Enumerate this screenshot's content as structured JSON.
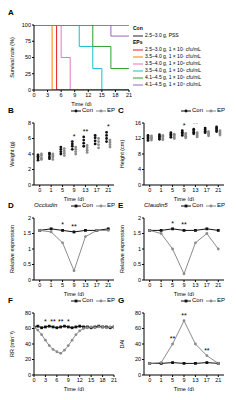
{
  "chart_data": [
    {
      "type": "line",
      "title": "A",
      "x_label": "Time (d)",
      "y_label": "Survival rate (%)",
      "line_style": "step",
      "x": [
        0,
        3,
        4,
        5,
        6,
        8,
        10,
        13,
        15,
        17,
        21
      ],
      "xlim": [
        0,
        21
      ],
      "xticks": [
        0,
        3,
        6,
        9,
        12,
        15,
        18,
        21
      ],
      "ylim": [
        0,
        100
      ],
      "yticks": [
        0,
        25,
        50,
        75,
        100
      ],
      "annotations": [
        {
          "text": "Con"
        },
        {
          "text": "EPs"
        }
      ],
      "series": [
        {
          "name": "2.5–3.0 g, PSS",
          "color": "#222222",
          "values": [
            100,
            100,
            100,
            100,
            100,
            100,
            100,
            100,
            100,
            100,
            100
          ]
        },
        {
          "name": "2.5–3.0 g, 1 × 10⁷ cfu/mL",
          "color": "#e41a1c",
          "values": [
            100,
            100,
            100,
            0,
            0,
            0,
            0,
            0,
            0,
            0,
            0
          ]
        },
        {
          "name": "3.5–4.0 g, 1 × 10⁷ cfu/mL",
          "color": "#ff7f00",
          "values": [
            100,
            100,
            0,
            0,
            0,
            0,
            0,
            0,
            0,
            0,
            0
          ]
        },
        {
          "name": "3.5–4.0 g, 1 × 10⁶ cfu/mL",
          "color": "#e377c2",
          "values": [
            100,
            100,
            100,
            100,
            50,
            0,
            0,
            0,
            0,
            0,
            0
          ]
        },
        {
          "name": "3.5–4.0 g, 1 × 10⁵ cfu/mL",
          "color": "#17becf",
          "values": [
            100,
            100,
            100,
            100,
            100,
            100,
            67,
            33,
            0,
            0,
            0
          ]
        },
        {
          "name": "4.1–4.5 g, 1 × 10⁵ cfu/mL",
          "color": "#2ca02c",
          "values": [
            100,
            100,
            100,
            100,
            100,
            100,
            100,
            67,
            67,
            33,
            33
          ]
        },
        {
          "name": "4.1–4.5 g, 1 × 10⁴ cfu/mL",
          "color": "#9467bd",
          "values": [
            100,
            100,
            100,
            100,
            100,
            100,
            100,
            100,
            100,
            83,
            83
          ]
        }
      ]
    },
    {
      "type": "scatter",
      "title": "B",
      "x_label": "Time (d)",
      "y_label": "Weight (g)",
      "categories": [
        "0",
        "1",
        "5",
        "9",
        "13",
        "17",
        "21"
      ],
      "ylim": [
        0,
        8
      ],
      "yticks": [
        0,
        2,
        4,
        6,
        8
      ],
      "annotations": [
        {
          "category": "9",
          "text": "*"
        },
        {
          "category": "13",
          "text": "**"
        },
        {
          "category": "21",
          "text": "*"
        }
      ],
      "series": [
        {
          "name": "Con",
          "color": "#111111",
          "marker": "circle",
          "values": [
            [
              3.2,
              3.5,
              3.7,
              3.9
            ],
            [
              3.4,
              3.6,
              3.9,
              4.1
            ],
            [
              4.0,
              4.3,
              4.6,
              4.9
            ],
            [
              4.6,
              5.0,
              5.3,
              5.6
            ],
            [
              5.0,
              5.4,
              5.8,
              6.2
            ],
            [
              5.3,
              5.7,
              6.1,
              6.4
            ],
            [
              5.6,
              6.0,
              6.4,
              6.8
            ]
          ]
        },
        {
          "name": "EP",
          "color": "#8c8c8c",
          "marker": "circle",
          "values": [
            [
              3.3,
              3.5,
              3.8,
              4.0
            ],
            [
              3.3,
              3.6,
              3.8,
              4.0
            ],
            [
              3.8,
              4.1,
              4.4,
              4.7
            ],
            [
              4.0,
              4.3,
              4.6,
              4.9
            ],
            [
              4.2,
              4.5,
              4.8,
              5.1
            ],
            [
              4.8,
              5.2,
              5.6,
              6.0
            ],
            [
              4.9,
              5.2,
              5.5,
              5.8
            ]
          ]
        }
      ]
    },
    {
      "type": "scatter",
      "title": "C",
      "x_label": "Time (d)",
      "y_label": "Height (cm)",
      "categories": [
        "0",
        "1",
        "5",
        "9",
        "13",
        "17",
        "21"
      ],
      "ylim": [
        0,
        16
      ],
      "yticks": [
        0,
        4,
        8,
        12,
        16
      ],
      "annotations": [
        {
          "category": "9",
          "text": "*"
        },
        {
          "category": "13",
          "text": "**"
        },
        {
          "category": "21",
          "text": "*"
        }
      ],
      "series": [
        {
          "name": "Con",
          "color": "#111111",
          "marker": "circle",
          "values": [
            [
              11.5,
              12,
              12.4,
              12.8
            ],
            [
              11.8,
              12.2,
              12.6,
              13
            ],
            [
              12.3,
              12.7,
              13.1,
              13.5
            ],
            [
              12.8,
              13.2,
              13.6,
              14
            ],
            [
              13.2,
              13.6,
              14,
              14.4
            ],
            [
              13.5,
              13.9,
              14.3,
              14.7
            ],
            [
              13.8,
              14.2,
              14.6,
              15
            ]
          ]
        },
        {
          "name": "EP",
          "color": "#8c8c8c",
          "marker": "circle",
          "values": [
            [
              11.6,
              12,
              12.3,
              12.7
            ],
            [
              11.7,
              12.1,
              12.5,
              12.8
            ],
            [
              12,
              12.4,
              12.8,
              13.1
            ],
            [
              12.2,
              12.6,
              13,
              13.3
            ],
            [
              12.4,
              12.8,
              13.2,
              13.5
            ],
            [
              12.7,
              13.1,
              13.4,
              13.8
            ],
            [
              12.9,
              13.3,
              13.7,
              14
            ]
          ]
        }
      ]
    },
    {
      "type": "line",
      "title": "D",
      "subtitle": "Occludin",
      "x_label": "Time (d)",
      "y_label": "Relative expression",
      "categories": [
        "0",
        "1",
        "5",
        "9",
        "13",
        "17",
        "21"
      ],
      "ylim": [
        0,
        2
      ],
      "yticks": [
        0,
        0.5,
        1,
        1.5,
        2
      ],
      "annotations": [
        {
          "category": "5",
          "text": "*"
        },
        {
          "category": "9",
          "text": "**"
        }
      ],
      "series": [
        {
          "name": "Con",
          "color": "#111111",
          "marker": "square",
          "values": [
            1.6,
            1.65,
            1.6,
            1.55,
            1.6,
            1.6,
            1.65
          ]
        },
        {
          "name": "EP",
          "color": "#8c8c8c",
          "marker": "circle",
          "values": [
            1.6,
            1.55,
            1.2,
            0.3,
            1.4,
            1.6,
            1.6
          ]
        }
      ]
    },
    {
      "type": "line",
      "title": "E",
      "subtitle": "Claudin5",
      "x_label": "Time (d)",
      "y_label": "Relative expression",
      "categories": [
        "0",
        "1",
        "5",
        "9",
        "13",
        "17",
        "21"
      ],
      "ylim": [
        0,
        2
      ],
      "yticks": [
        0,
        0.5,
        1,
        1.5,
        2
      ],
      "annotations": [
        {
          "category": "5",
          "text": "*"
        },
        {
          "category": "9",
          "text": "**"
        }
      ],
      "series": [
        {
          "name": "Con",
          "color": "#111111",
          "marker": "square",
          "values": [
            1.6,
            1.6,
            1.65,
            1.6,
            1.6,
            1.65,
            1.6
          ]
        },
        {
          "name": "EP",
          "color": "#8c8c8c",
          "marker": "circle",
          "values": [
            1.6,
            1.5,
            1.0,
            0.2,
            1.2,
            1.5,
            1.0
          ]
        }
      ]
    },
    {
      "type": "line",
      "title": "F",
      "x_label": "Time (d)",
      "y_label": "RR (min⁻¹)",
      "x": [
        0,
        1,
        2,
        3,
        4,
        5,
        6,
        7,
        8,
        9,
        10,
        11,
        12,
        13,
        14,
        15,
        16,
        17,
        18,
        19,
        20,
        21
      ],
      "xlim": [
        0,
        21
      ],
      "xticks": [
        0,
        3,
        6,
        9,
        12,
        15,
        18,
        21
      ],
      "ylim": [
        0,
        80
      ],
      "yticks": [
        0,
        20,
        40,
        60,
        80
      ],
      "annotations": [
        {
          "x": 3,
          "text": "*"
        },
        {
          "x": 5,
          "text": "**"
        },
        {
          "x": 7,
          "text": "**"
        },
        {
          "x": 9,
          "text": "*"
        }
      ],
      "series": [
        {
          "name": "Con",
          "color": "#111111",
          "marker": "square",
          "values": [
            62,
            63,
            61,
            62,
            63,
            62,
            61,
            62,
            63,
            62,
            61,
            62,
            63,
            62,
            62,
            61,
            62,
            63,
            62,
            62,
            61,
            62
          ]
        },
        {
          "name": "EP",
          "color": "#8c8c8c",
          "marker": "circle",
          "values": [
            62,
            58,
            52,
            45,
            38,
            33,
            30,
            28,
            32,
            38,
            45,
            52,
            57,
            60,
            61,
            62,
            61,
            62,
            62,
            61,
            62,
            62
          ]
        }
      ]
    },
    {
      "type": "line",
      "title": "G",
      "x_label": "Time (d)",
      "y_label": "DAI",
      "categories": [
        "0",
        "1",
        "5",
        "9",
        "13",
        "17",
        "21"
      ],
      "ylim": [
        0,
        80
      ],
      "yticks": [
        0,
        20,
        40,
        60,
        80
      ],
      "annotations": [
        {
          "category": "5",
          "text": "**"
        },
        {
          "category": "9",
          "text": "**"
        },
        {
          "category": "17",
          "text": "**"
        }
      ],
      "series": [
        {
          "name": "Con",
          "color": "#111111",
          "marker": "square",
          "values": [
            15,
            15,
            16,
            15,
            15,
            16,
            15
          ]
        },
        {
          "name": "EP",
          "color": "#8c8c8c",
          "marker": "circle",
          "values": [
            15,
            16,
            40,
            70,
            40,
            25,
            15
          ]
        }
      ]
    }
  ]
}
